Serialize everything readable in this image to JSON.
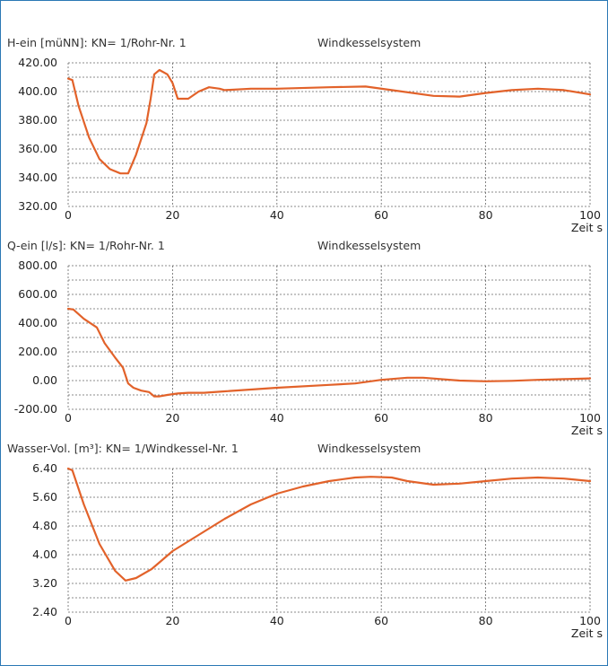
{
  "colors": {
    "frame": "#2b78b5",
    "series": "#e2622a",
    "grid": "#666666"
  },
  "chart_data": [
    {
      "type": "line",
      "title_left": "H-ein [müNN]: KN= 1/Rohr-Nr. 1",
      "title_right": "Windkesselsystem",
      "xlabel": "Zeit s",
      "xlim": [
        0,
        100
      ],
      "ylim": [
        320,
        420
      ],
      "xticks": [
        0,
        20,
        40,
        60,
        80,
        100
      ],
      "yticks": [
        320,
        340,
        360,
        380,
        400,
        420
      ],
      "ytick_labels": [
        "320.00",
        "340.00",
        "360.00",
        "380.00",
        "400.00",
        "420.00"
      ],
      "grid": true,
      "series": [
        {
          "x": [
            0,
            0.8,
            2,
            4,
            6,
            8,
            10,
            11.5,
            13,
            14,
            15,
            15.8,
            16.5,
            17.5,
            19,
            20,
            21,
            23,
            25,
            27,
            29,
            30,
            35,
            40,
            50,
            57,
            62,
            70,
            75,
            80,
            85,
            90,
            95,
            100
          ],
          "y": [
            409,
            408,
            390,
            368,
            353,
            346,
            343,
            343,
            356,
            367,
            378,
            395,
            412,
            415,
            412,
            406,
            395,
            395,
            400,
            403,
            402,
            401,
            402,
            402,
            403,
            403.5,
            401,
            397,
            396.5,
            399,
            401,
            402,
            401,
            398
          ]
        }
      ]
    },
    {
      "type": "line",
      "title_left": "Q-ein [l/s]: KN= 1/Rohr-Nr. 1",
      "title_right": "Windkesselsystem",
      "xlabel": "Zeit s",
      "xlim": [
        0,
        100
      ],
      "ylim": [
        -200,
        800
      ],
      "xticks": [
        0,
        20,
        40,
        60,
        80,
        100
      ],
      "yticks": [
        -200,
        0,
        200,
        400,
        600,
        800
      ],
      "ytick_labels": [
        "-200.00",
        "0.00",
        "200.00",
        "400.00",
        "600.00",
        "800.00"
      ],
      "grid": true,
      "series": [
        {
          "x": [
            0,
            1,
            3,
            5.5,
            7,
            9,
            10.5,
            11.5,
            12.5,
            14,
            15.5,
            16.5,
            17.5,
            19,
            21,
            23,
            26,
            30,
            40,
            50,
            55,
            60,
            65,
            68,
            75,
            80,
            85,
            90,
            95,
            100
          ],
          "y": [
            500,
            495,
            430,
            370,
            260,
            160,
            90,
            -20,
            -50,
            -70,
            -80,
            -110,
            -110,
            -100,
            -90,
            -85,
            -85,
            -75,
            -50,
            -30,
            -20,
            5,
            20,
            20,
            0,
            -5,
            -2,
            5,
            10,
            15
          ]
        }
      ]
    },
    {
      "type": "line",
      "title_left": "Wasser-Vol. [m³]: KN= 1/Windkessel-Nr. 1",
      "title_right": "Windkesselsystem",
      "xlabel": "Zeit s",
      "xlim": [
        0,
        100
      ],
      "ylim": [
        2.4,
        6.4
      ],
      "xticks": [
        0,
        20,
        40,
        60,
        80,
        100
      ],
      "yticks": [
        2.4,
        3.2,
        4.0,
        4.8,
        5.6,
        6.4
      ],
      "ytick_labels": [
        "2.40",
        "3.20",
        "4.00",
        "4.80",
        "5.60",
        "6.40"
      ],
      "grid": true,
      "series": [
        {
          "x": [
            0,
            0.8,
            3,
            6,
            9,
            11,
            13,
            16,
            18,
            20,
            25,
            30,
            35,
            40,
            45,
            50,
            55,
            58,
            62,
            65,
            70,
            75,
            80,
            85,
            90,
            95,
            100
          ],
          "y": [
            6.4,
            6.35,
            5.4,
            4.3,
            3.55,
            3.28,
            3.35,
            3.6,
            3.85,
            4.1,
            4.55,
            5.0,
            5.4,
            5.7,
            5.9,
            6.05,
            6.15,
            6.17,
            6.15,
            6.05,
            5.95,
            5.98,
            6.05,
            6.12,
            6.15,
            6.12,
            6.05
          ]
        }
      ]
    }
  ]
}
